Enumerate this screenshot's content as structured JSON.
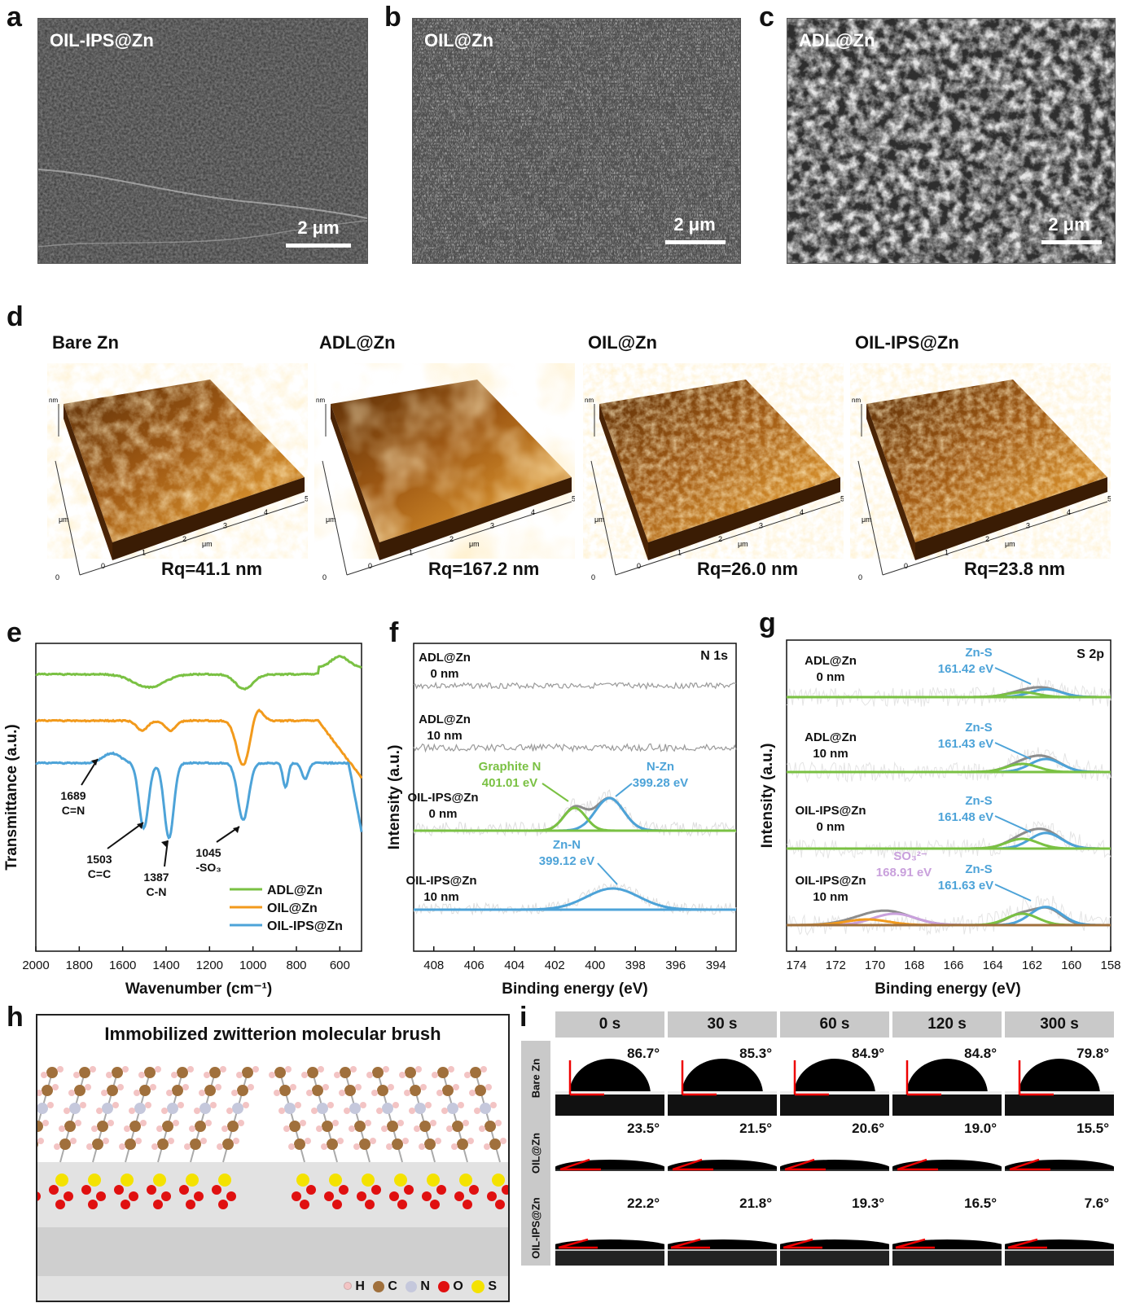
{
  "panels": {
    "a": "a",
    "b": "b",
    "c": "c",
    "d": "d",
    "e": "e",
    "f": "f",
    "g": "g",
    "h": "h",
    "i": "i"
  },
  "sem": [
    {
      "label": "OIL-IPS@Zn",
      "scale": "2 μm"
    },
    {
      "label": "OIL@Zn",
      "scale": "2 μm"
    },
    {
      "label": "ADL@Zn",
      "scale": "2 μm"
    }
  ],
  "afm": [
    {
      "title": "Bare Zn",
      "rq": "Rq=41.1 nm"
    },
    {
      "title": "ADL@Zn",
      "rq": "Rq=167.2 nm"
    },
    {
      "title": "OIL@Zn",
      "rq": "Rq=26.0 nm"
    },
    {
      "title": "OIL-IPS@Zn",
      "rq": "Rq=23.8 nm"
    }
  ],
  "afm_axis": {
    "um": "μm",
    "nm": "nm",
    "ticks": [
      "0",
      "1",
      "2",
      "3",
      "4",
      "5"
    ]
  },
  "chart_data": [
    {
      "type": "line",
      "panel": "e",
      "xlabel": "Wavenumber (cm⁻¹)",
      "ylabel": "Transmittance (a.u.)",
      "xlim": [
        2000,
        500
      ],
      "xticks": [
        "2000",
        "1800",
        "1600",
        "1400",
        "1200",
        "1000",
        "800",
        "600"
      ],
      "legend": [
        "ADL@Zn",
        "OIL@Zn",
        "OIL-IPS@Zn"
      ],
      "annotations": [
        {
          "l1": "1689",
          "l2": "C=N"
        },
        {
          "l1": "1503",
          "l2": "C=C"
        },
        {
          "l1": "1387",
          "l2": "C-N"
        },
        {
          "l1": "1045",
          "l2": "-SO₃"
        }
      ]
    },
    {
      "type": "line",
      "panel": "f",
      "title": "N 1s",
      "xlabel": "Binding energy (eV)",
      "ylabel": "Intensity (a.u.)",
      "xlim": [
        409,
        393
      ],
      "xticks": [
        "408",
        "406",
        "404",
        "402",
        "400",
        "398",
        "396",
        "394"
      ],
      "samples": [
        {
          "l1": "ADL@Zn",
          "l2": "0 nm"
        },
        {
          "l1": "ADL@Zn",
          "l2": "10 nm"
        },
        {
          "l1": "OIL-IPS@Zn",
          "l2": "0 nm"
        },
        {
          "l1": "OIL-IPS@Zn",
          "l2": "10 nm"
        }
      ],
      "peaks": [
        {
          "name": "Graphite N",
          "energy": "401.01 eV"
        },
        {
          "name": "N-Zn",
          "energy": "399.28 eV"
        },
        {
          "name": "Zn-N",
          "energy": "399.12 eV"
        }
      ]
    },
    {
      "type": "line",
      "panel": "g",
      "title": "S 2p",
      "xlabel": "Binding energy (eV)",
      "ylabel": "Intensity (a.u.)",
      "xlim": [
        174.5,
        158
      ],
      "xticks": [
        "174",
        "172",
        "170",
        "168",
        "166",
        "164",
        "162",
        "160",
        "158"
      ],
      "samples": [
        {
          "l1": "ADL@Zn",
          "l2": "0 nm"
        },
        {
          "l1": "ADL@Zn",
          "l2": "10 nm"
        },
        {
          "l1": "OIL-IPS@Zn",
          "l2": "0 nm"
        },
        {
          "l1": "OIL-IPS@Zn",
          "l2": "10 nm"
        }
      ],
      "peaks": [
        {
          "name": "Zn-S",
          "energy": "161.42 eV"
        },
        {
          "name": "Zn-S",
          "energy": "161.43 eV"
        },
        {
          "name": "Zn-S",
          "energy": "161.48 eV"
        },
        {
          "name": "Zn-S",
          "energy": "161.63 eV"
        },
        {
          "name": "SO₃²⁻",
          "energy": "168.91 eV"
        }
      ]
    }
  ],
  "brush": {
    "title": "Immobilized zwitterion molecular brush",
    "legend": [
      "H",
      "C",
      "N",
      "O",
      "S"
    ]
  },
  "contact": {
    "times": [
      "0 s",
      "30 s",
      "60 s",
      "120 s",
      "300 s"
    ],
    "rows": [
      {
        "name": "Bare Zn",
        "angles": [
          "86.7°",
          "85.3°",
          "84.9°",
          "84.8°",
          "79.8°"
        ]
      },
      {
        "name": "OIL@Zn",
        "angles": [
          "23.5°",
          "21.5°",
          "20.6°",
          "19.0°",
          "15.5°"
        ]
      },
      {
        "name": "OIL-IPS@Zn",
        "angles": [
          "22.2°",
          "21.8°",
          "19.3°",
          "16.5°",
          "7.6°"
        ]
      }
    ]
  },
  "colors": {
    "green": "#7ac143",
    "orange": "#f29a1c",
    "blue": "#4da3d8",
    "gray": "#8c8c8c",
    "purple": "#c9a0dc",
    "brown": "#a0703c"
  }
}
